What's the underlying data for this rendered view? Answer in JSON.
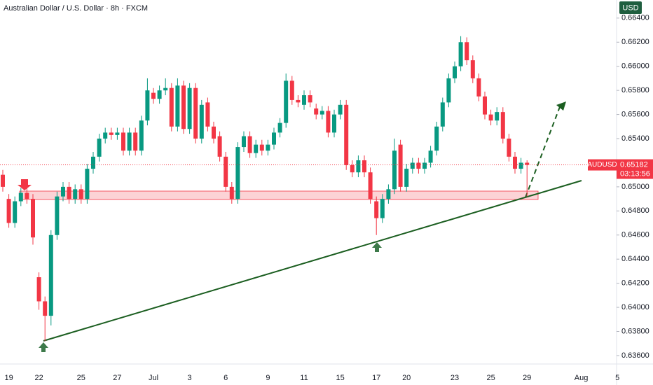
{
  "chart_data": {
    "type": "candlestick",
    "title": "Australian Dollar / U.S. Dollar · 8h · FXCM",
    "currency": "USD",
    "symbol": "AUDUSD",
    "last_price": 0.65182,
    "countdown": "03:13:56",
    "up_color": "#089981",
    "down_color": "#f23645",
    "grid": false,
    "categories": [
      null,
      "19",
      null,
      null,
      null,
      null,
      "22",
      null,
      null,
      null,
      null,
      null,
      null,
      "25",
      null,
      null,
      null,
      null,
      null,
      "27",
      null,
      null,
      null,
      null,
      null,
      "Jul",
      null,
      null,
      null,
      null,
      null,
      "3",
      null,
      null,
      null,
      null,
      null,
      "6",
      null,
      null,
      null,
      null,
      null,
      null,
      "9",
      null,
      null,
      null,
      null,
      null,
      "11",
      null,
      null,
      null,
      null,
      null,
      "15",
      null,
      null,
      null,
      null,
      null,
      "17",
      null,
      null,
      null,
      null,
      "20",
      null,
      null,
      null,
      null,
      null,
      null,
      null,
      "23",
      null,
      null,
      null,
      null,
      null,
      "25",
      null,
      null,
      null,
      null,
      null,
      "29",
      null,
      null,
      null,
      null,
      null,
      null,
      null,
      null,
      "Aug",
      null,
      null,
      null,
      null,
      null,
      "5"
    ],
    "open": [
      0.651,
      0.649,
      0.647,
      0.6488,
      0.6495,
      0.649,
      0.6425,
      0.6405,
      0.6393,
      0.646,
      0.6492,
      0.65,
      0.649,
      0.6498,
      0.649,
      0.6515,
      0.6525,
      0.654,
      0.6545,
      0.6543,
      0.6545,
      0.653,
      0.6545,
      0.653,
      0.6555,
      0.6578,
      0.6573,
      0.658,
      0.6582,
      0.655,
      0.6584,
      0.6548,
      0.6582,
      0.654,
      0.657,
      0.655,
      0.6542,
      0.6525,
      0.65,
      0.649,
      0.6533,
      0.6542,
      0.6528,
      0.6535,
      0.653,
      0.6535,
      0.6545,
      0.6553,
      0.6588,
      0.6572,
      0.6568,
      0.6576,
      0.6565,
      0.656,
      0.6563,
      0.6545,
      0.656,
      0.6568,
      0.6518,
      0.6512,
      0.6522,
      0.6512,
      0.6488,
      0.6474,
      0.649,
      0.6498,
      0.6535,
      0.65,
      0.6515,
      0.652,
      0.6515,
      0.652,
      0.653,
      0.655,
      0.657,
      0.659,
      0.66,
      0.662,
      0.6605,
      0.659,
      0.6575,
      0.656,
      0.6555,
      0.6562,
      0.654,
      0.6525,
      0.6515,
      0.652,
      null,
      null,
      null,
      null,
      null,
      null,
      null,
      null,
      null,
      null,
      null,
      null,
      null,
      null,
      null
    ],
    "high": [
      0.6514,
      0.6494,
      0.6492,
      0.6499,
      0.6499,
      0.6494,
      0.6429,
      0.6409,
      0.6464,
      0.6496,
      0.6504,
      0.6504,
      0.6502,
      0.6502,
      0.6519,
      0.6529,
      0.6544,
      0.6549,
      0.6549,
      0.6549,
      0.6549,
      0.6549,
      0.6549,
      0.6559,
      0.659,
      0.6582,
      0.6584,
      0.659,
      0.6586,
      0.659,
      0.6588,
      0.6586,
      0.6586,
      0.6572,
      0.6574,
      0.6554,
      0.6546,
      0.6529,
      0.6504,
      0.6537,
      0.6546,
      0.6546,
      0.6539,
      0.6539,
      0.6539,
      0.6549,
      0.6557,
      0.6594,
      0.6592,
      0.6576,
      0.658,
      0.658,
      0.6569,
      0.6567,
      0.6567,
      0.6564,
      0.6572,
      0.6572,
      0.6522,
      0.6526,
      0.6526,
      0.6516,
      0.6492,
      0.6494,
      0.6502,
      0.654,
      0.6539,
      0.6519,
      0.6524,
      0.6524,
      0.6524,
      0.6534,
      0.6554,
      0.6574,
      0.6594,
      0.6604,
      0.6625,
      0.6624,
      0.6609,
      0.6594,
      0.6579,
      0.6564,
      0.6566,
      0.6566,
      0.6544,
      0.6529,
      0.6524,
      0.6522,
      null,
      null,
      null,
      null,
      null,
      null,
      null,
      null,
      null,
      null,
      null,
      null,
      null,
      null,
      null
    ],
    "low": [
      0.6496,
      0.6466,
      0.6466,
      0.6484,
      0.6486,
      0.6452,
      0.6398,
      0.6372,
      0.6385,
      0.6456,
      0.6488,
      0.6486,
      0.6486,
      0.6486,
      0.6486,
      0.6511,
      0.6521,
      0.6536,
      0.6539,
      0.6539,
      0.6526,
      0.6526,
      0.6526,
      0.6526,
      0.6551,
      0.6569,
      0.6569,
      0.6576,
      0.6546,
      0.6546,
      0.6544,
      0.6544,
      0.6536,
      0.6536,
      0.6546,
      0.6536,
      0.6521,
      0.6496,
      0.6486,
      0.6486,
      0.6529,
      0.6524,
      0.6524,
      0.6526,
      0.6526,
      0.6531,
      0.6541,
      0.6549,
      0.6568,
      0.6566,
      0.6564,
      0.6566,
      0.6556,
      0.6556,
      0.6541,
      0.6541,
      0.6556,
      0.6514,
      0.6508,
      0.6508,
      0.6508,
      0.6486,
      0.646,
      0.647,
      0.6486,
      0.6494,
      0.6496,
      0.6496,
      0.6511,
      0.6511,
      0.6511,
      0.6516,
      0.6526,
      0.6546,
      0.6566,
      0.6586,
      0.6596,
      0.6601,
      0.6586,
      0.6571,
      0.6556,
      0.6551,
      0.6551,
      0.6536,
      0.6521,
      0.6511,
      0.6511,
      0.6492,
      null,
      null,
      null,
      null,
      null,
      null,
      null,
      null,
      null,
      null,
      null,
      null,
      null,
      null,
      null
    ],
    "close": [
      0.65,
      0.647,
      0.6488,
      0.6495,
      0.649,
      0.6458,
      0.6405,
      0.6393,
      0.646,
      0.6492,
      0.65,
      0.649,
      0.6498,
      0.649,
      0.6515,
      0.6525,
      0.654,
      0.6545,
      0.6543,
      0.6545,
      0.653,
      0.6545,
      0.653,
      0.6555,
      0.658,
      0.6573,
      0.658,
      0.6582,
      0.655,
      0.6584,
      0.6548,
      0.6582,
      0.654,
      0.6568,
      0.655,
      0.654,
      0.6525,
      0.65,
      0.649,
      0.6533,
      0.6542,
      0.6528,
      0.6535,
      0.653,
      0.6535,
      0.6545,
      0.6553,
      0.6588,
      0.6572,
      0.657,
      0.6576,
      0.657,
      0.656,
      0.6563,
      0.6545,
      0.656,
      0.6568,
      0.6518,
      0.6512,
      0.6522,
      0.6512,
      0.649,
      0.6474,
      0.649,
      0.6498,
      0.653,
      0.65,
      0.6515,
      0.652,
      0.6515,
      0.652,
      0.653,
      0.655,
      0.657,
      0.659,
      0.66,
      0.662,
      0.6605,
      0.659,
      0.6575,
      0.656,
      0.6555,
      0.6562,
      0.654,
      0.6525,
      0.6515,
      0.652,
      0.65182,
      null,
      null,
      null,
      null,
      null,
      null,
      null,
      null,
      null,
      null,
      null,
      null,
      null,
      null,
      null
    ],
    "ylim": [
      0.6353,
      0.6655
    ],
    "yticks": [
      {
        "value": 0.636,
        "label": "0.63600"
      },
      {
        "value": 0.638,
        "label": "0.63800"
      },
      {
        "value": 0.64,
        "label": "0.64000"
      },
      {
        "value": 0.642,
        "label": "0.64200"
      },
      {
        "value": 0.644,
        "label": "0.64400"
      },
      {
        "value": 0.646,
        "label": "0.64600"
      },
      {
        "value": 0.648,
        "label": "0.64800"
      },
      {
        "value": 0.65,
        "label": "0.65000"
      },
      {
        "value": 0.652,
        "label": "0.65200"
      },
      {
        "value": 0.654,
        "label": "0.65400"
      },
      {
        "value": 0.656,
        "label": "0.65600"
      },
      {
        "value": 0.658,
        "label": "0.65800"
      },
      {
        "value": 0.66,
        "label": "0.66000"
      },
      {
        "value": 0.662,
        "label": "0.66200"
      },
      {
        "value": 0.664,
        "label": "0.66400"
      }
    ]
  }
}
